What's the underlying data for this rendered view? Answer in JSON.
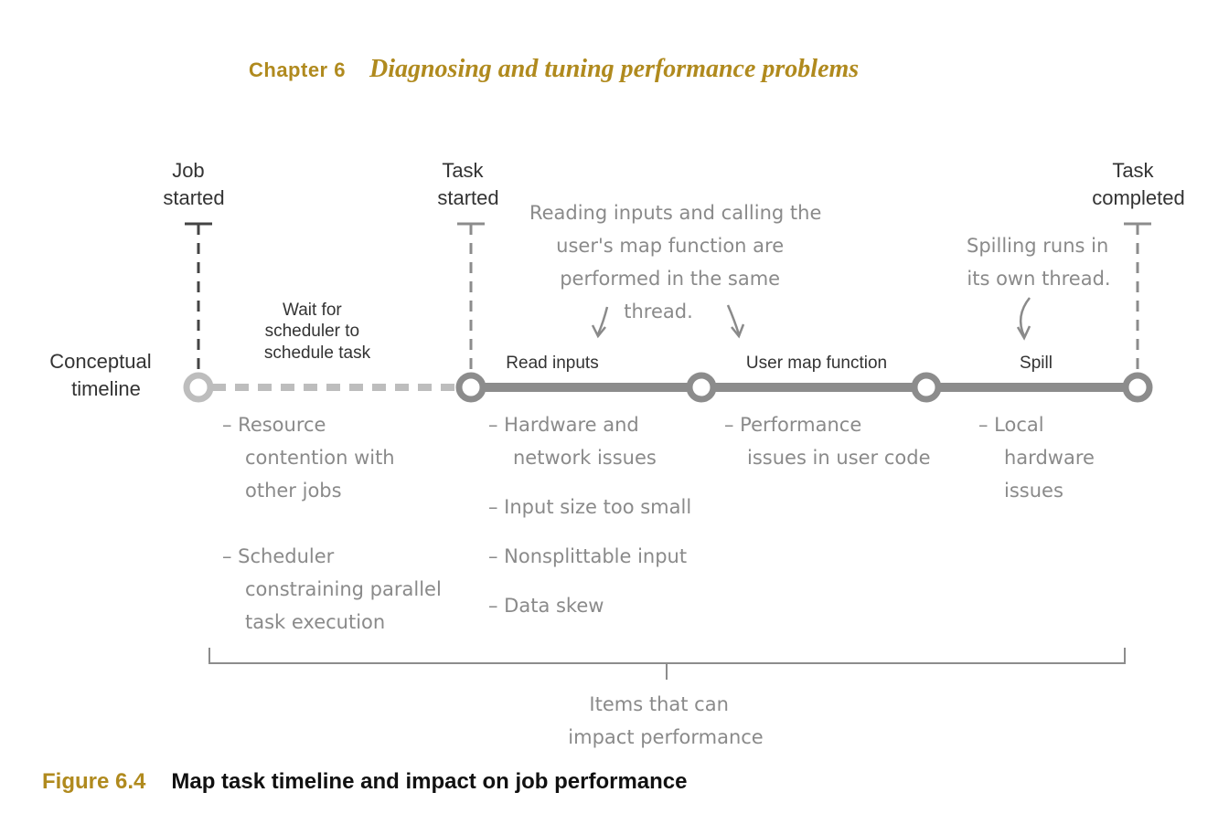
{
  "header": {
    "chapter": "Chapter 6",
    "title": "Diagnosing and tuning performance problems"
  },
  "markers": {
    "job_started": [
      "Job",
      "started"
    ],
    "task_started": [
      "Task",
      "started"
    ],
    "task_completed": [
      "Task",
      "completed"
    ]
  },
  "timeline": {
    "label": [
      "Conceptual",
      "timeline"
    ],
    "wait": [
      "Wait for",
      "scheduler to",
      "schedule task"
    ],
    "phases": {
      "read_inputs": "Read inputs",
      "user_map": "User map function",
      "spill": "Spill"
    }
  },
  "annotations": {
    "reading": [
      "Reading inputs and calling the",
      "user's map function are",
      "performed in the same",
      "thread."
    ],
    "spilling": [
      "Spilling runs in",
      "its own thread."
    ]
  },
  "issues": {
    "wait": [
      [
        "– Resource",
        "contention with",
        "other jobs"
      ],
      [
        "– Scheduler",
        "constraining parallel",
        "task execution"
      ]
    ],
    "read": [
      [
        "– Hardware and",
        "network issues"
      ],
      [
        "– Input size too small"
      ],
      [
        "– Nonsplittable input"
      ],
      [
        "– Data skew"
      ]
    ],
    "map": [
      [
        "– Performance",
        "issues in user code"
      ]
    ],
    "spill": [
      [
        "– Local",
        "hardware",
        "issues"
      ]
    ]
  },
  "bracket_label": [
    "Items that can",
    "impact performance"
  ],
  "caption": {
    "number": "Figure 6.4",
    "text": "Map task timeline and impact on job performance"
  },
  "colors": {
    "accent": "#b08a1e",
    "line": "#8c8c8c",
    "wait_line": "#bdbdbd",
    "hand": "#8a8a8a"
  }
}
